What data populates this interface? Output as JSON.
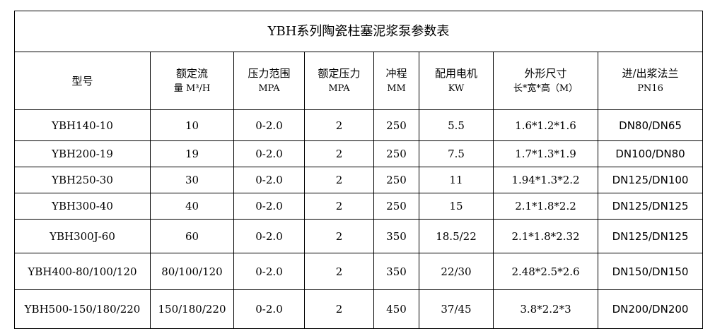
{
  "title": "YBH系列陶瓷柱塞泥浆泵参数表",
  "headers": [
    {
      "line1": "型号",
      "line2": ""
    },
    {
      "line1": "额定流",
      "line2": "量 M³/H"
    },
    {
      "line1": "压力范围",
      "line2": "MPA"
    },
    {
      "line1": "额定压力",
      "line2": "MPA"
    },
    {
      "line1": "冲程",
      "line2": "MM"
    },
    {
      "line1": "配用电机",
      "line2": "KW"
    },
    {
      "line1": "外形尺寸",
      "line2": "长*宽*高（M）"
    },
    {
      "line1": "进/出浆法兰",
      "line2": "PN16"
    }
  ],
  "rows": [
    [
      "YBH140-10",
      "10",
      "0-2.0",
      "2",
      "250",
      "5.5",
      "1.6*1.2*1.6",
      "DN80/DN65"
    ],
    [
      "YBH200-19",
      "19",
      "0-2.0",
      "2",
      "250",
      "7.5",
      "1.7*1.3*1.9",
      "DN100/DN80"
    ],
    [
      "YBH250-30",
      "30",
      "0-2.0",
      "2",
      "250",
      "11",
      "1.94*1.3*2.2",
      "DN125/DN100"
    ],
    [
      "YBH300-40",
      "40",
      "0-2.0",
      "2",
      "250",
      "15",
      "2.1*1.8*2.2",
      "DN125/DN125"
    ],
    [
      "YBH300J-60",
      "60",
      "0-2.0",
      "2",
      "350",
      "18.5/22",
      "2.1*1.8*2.32",
      "DN125/DN125"
    ],
    [
      "YBH400-80/100/120",
      "80/100/120",
      "0-2.0",
      "2",
      "350",
      "22/30",
      "2.48*2.5*2.6",
      "DN150/DN150"
    ],
    [
      "YBH500-150/180/220",
      "150/180/220",
      "0-2.0",
      "2",
      "450",
      "37/45",
      "3.8*2.2*3",
      "DN200/DN200"
    ]
  ]
}
